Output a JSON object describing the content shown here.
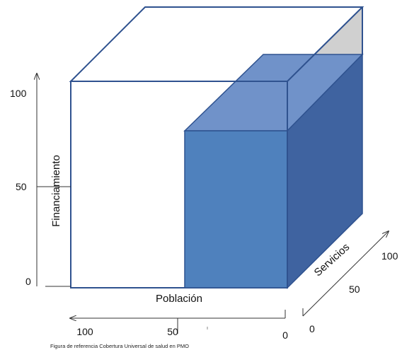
{
  "colors": {
    "outline": "#2f528f",
    "front_face": "#4f81bd",
    "top_face": "#7092c9",
    "side_face": "#3f63a0",
    "back_triangle": "#d0d0d0",
    "axis": "#333333"
  },
  "axes": {
    "financiamiento": {
      "title": "Financiamiento",
      "ticks": [
        "100",
        "50",
        "0"
      ]
    },
    "poblacion": {
      "title": "Población",
      "ticks": [
        "100",
        "50",
        "0"
      ]
    },
    "servicios": {
      "title": "Servicios",
      "ticks": [
        "100",
        "50",
        "0"
      ]
    }
  },
  "caption": "Figura de referencia Cobertura Universal de salud en PMO"
}
